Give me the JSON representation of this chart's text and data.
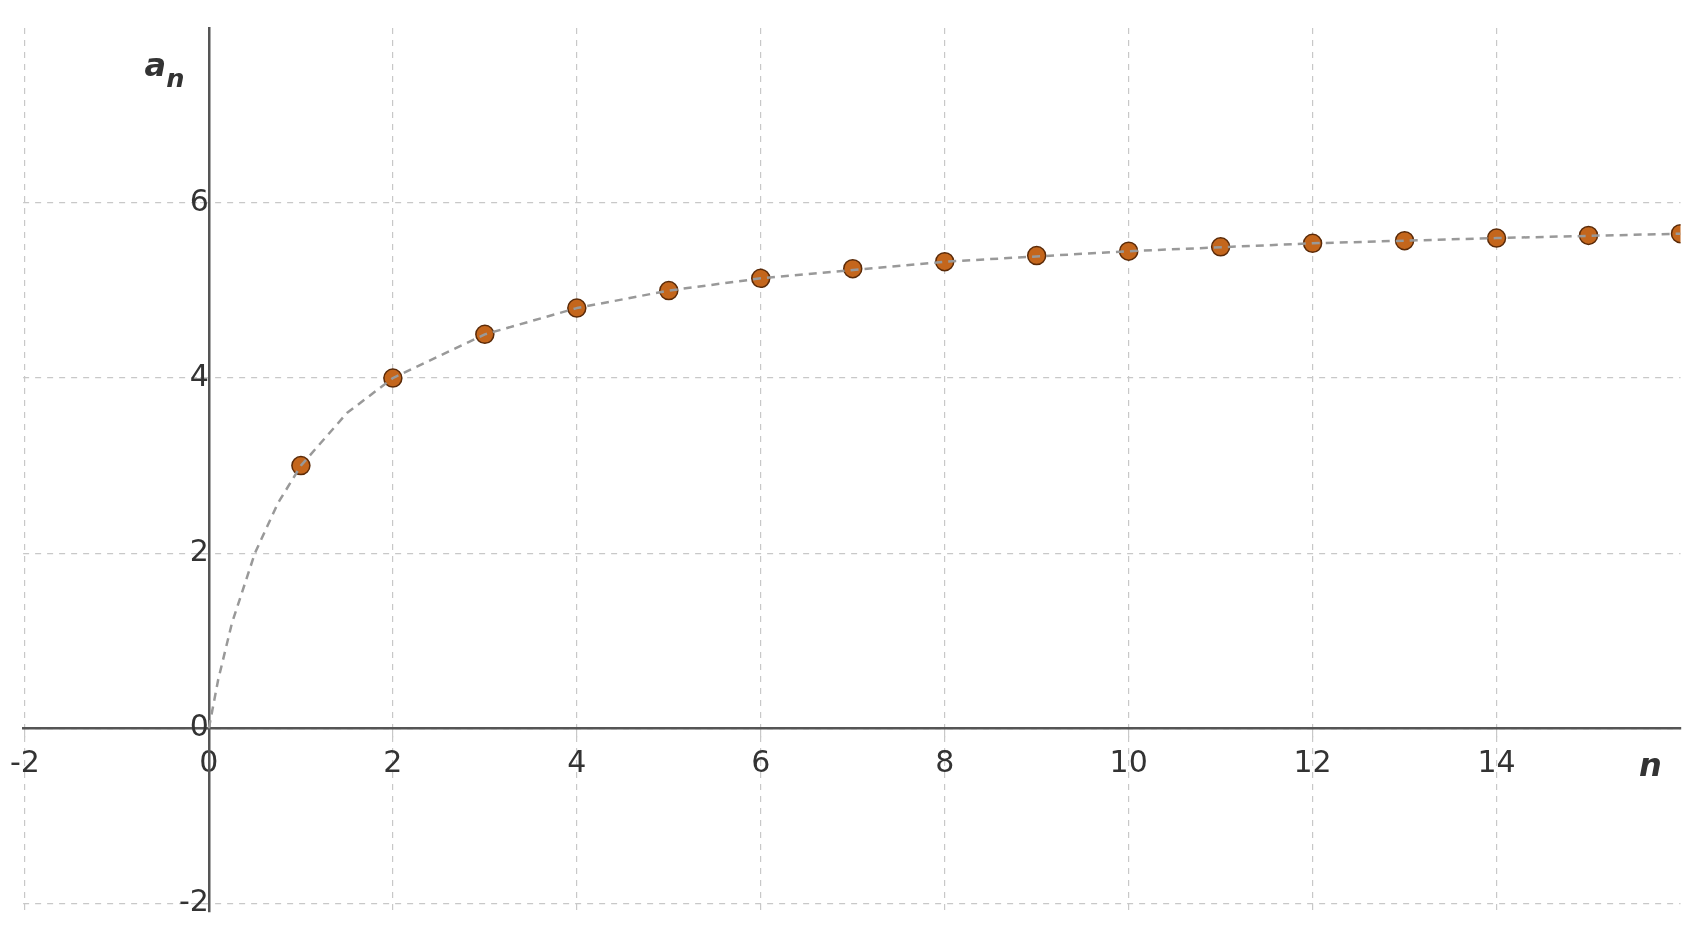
{
  "chart_data": {
    "type": "scatter",
    "xlabel": "n",
    "ylabel": "a$_{n}$",
    "xlim": [
      -2.02,
      16
    ],
    "ylim": [
      -2.1,
      8
    ],
    "xticks": [
      -2,
      0,
      2,
      4,
      6,
      8,
      10,
      12,
      14
    ],
    "yticks": [
      -2,
      0,
      2,
      4,
      6
    ],
    "grid": true,
    "series": [
      {
        "type": "line",
        "color": "#999999",
        "marker": "none",
        "line_style": "dashed",
        "x": [
          0,
          0.1,
          0.25,
          0.5,
          0.75,
          1,
          1.5,
          2,
          3,
          4,
          5,
          6,
          8,
          10,
          12,
          14,
          16
        ],
        "values": [
          0,
          0.55,
          1.2,
          2,
          2.57,
          3,
          3.6,
          4,
          4.5,
          4.8,
          5,
          5.14,
          5.33,
          5.45,
          5.54,
          5.6,
          5.65
        ]
      },
      {
        "type": "scatter",
        "color": "#c4661c",
        "marker": "circle",
        "x": [
          1,
          2,
          3,
          4,
          5,
          6,
          7,
          8,
          9,
          10,
          11,
          12,
          13,
          14,
          15,
          16
        ],
        "values": [
          3,
          4,
          4.5,
          4.8,
          5,
          5.14,
          5.25,
          5.33,
          5.4,
          5.45,
          5.5,
          5.54,
          5.57,
          5.6,
          5.63,
          5.65
        ]
      }
    ]
  }
}
